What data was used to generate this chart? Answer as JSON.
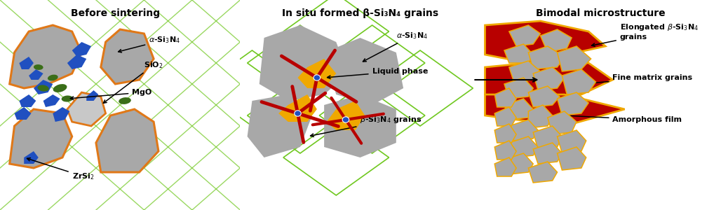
{
  "title1": "Before sintering",
  "title2": "In situ formed β-Si₃N₄ grains",
  "title3": "Bimodal microstructure",
  "bg_color": "#ffffff",
  "gray": "#a8a8a8",
  "orange": "#e07818",
  "blue": "#2050c0",
  "green_dark": "#3a6e18",
  "red": "#b80000",
  "yellow": "#f0a800",
  "lgreen": "#70c820",
  "light_gray": "#c8c8c8"
}
